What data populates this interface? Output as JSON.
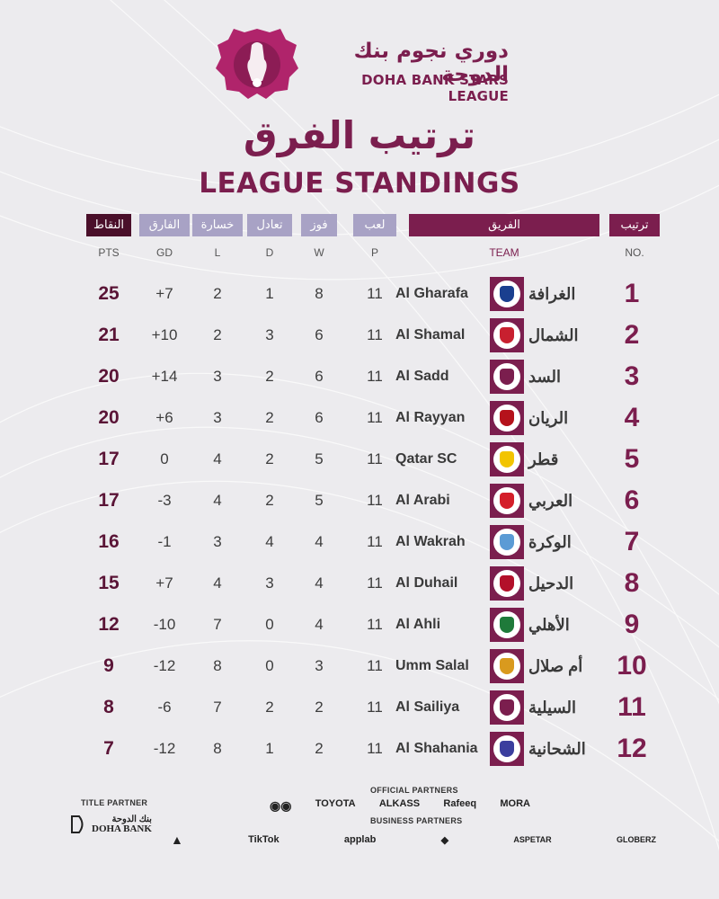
{
  "league": {
    "name_ar": "دوري نجوم بنك الدوحة",
    "name_en": "DOHA BANK STARS LEAGUE"
  },
  "title": {
    "ar": "ترتيب الفرق",
    "en": "LEAGUE STANDINGS"
  },
  "headers": {
    "rank_ar": "ترتيب",
    "team_ar": "الفريق",
    "played_ar": "لعب",
    "won_ar": "فوز",
    "drawn_ar": "تعادل",
    "lost_ar": "خسارة",
    "gd_ar": "الفارق",
    "pts_ar": "النقاط",
    "rank_en": "NO.",
    "team_en": "TEAM",
    "played_en": "P",
    "won_en": "W",
    "drawn_en": "D",
    "lost_en": "L",
    "gd_en": "GD",
    "pts_en": "PTS"
  },
  "colors": {
    "maroon": "#7b1e4e",
    "lavender": "#a8a2c5",
    "dark": "#4a0f2a"
  },
  "teams": [
    {
      "no": "1",
      "name_ar": "الغرافة",
      "name": "Al Gharafa",
      "p": "11",
      "w": "8",
      "d": "1",
      "l": "2",
      "gd": "+7",
      "pts": "25",
      "crest_color": "#1a3f8f"
    },
    {
      "no": "2",
      "name_ar": "الشمال",
      "name": "Al Shamal",
      "p": "11",
      "w": "6",
      "d": "3",
      "l": "2",
      "gd": "+10",
      "pts": "21",
      "crest_color": "#c8202f"
    },
    {
      "no": "3",
      "name_ar": "السد",
      "name": "Al Sadd",
      "p": "11",
      "w": "6",
      "d": "2",
      "l": "3",
      "gd": "+14",
      "pts": "20",
      "crest_color": "#7b1e4e"
    },
    {
      "no": "4",
      "name_ar": "الريان",
      "name": "Al Rayyan",
      "p": "11",
      "w": "6",
      "d": "2",
      "l": "3",
      "gd": "+6",
      "pts": "20",
      "crest_color": "#b5121b"
    },
    {
      "no": "5",
      "name_ar": "قطر",
      "name": "Qatar SC",
      "p": "11",
      "w": "5",
      "d": "2",
      "l": "4",
      "gd": "0",
      "pts": "17",
      "crest_color": "#f2c400"
    },
    {
      "no": "6",
      "name_ar": "العربي",
      "name": "Al Arabi",
      "p": "11",
      "w": "5",
      "d": "2",
      "l": "4",
      "gd": "-3",
      "pts": "17",
      "crest_color": "#d41f2a"
    },
    {
      "no": "7",
      "name_ar": "الوكرة",
      "name": "Al Wakrah",
      "p": "11",
      "w": "4",
      "d": "4",
      "l": "3",
      "gd": "-1",
      "pts": "16",
      "crest_color": "#5b9bd5"
    },
    {
      "no": "8",
      "name_ar": "الدحيل",
      "name": "Al Duhail",
      "p": "11",
      "w": "4",
      "d": "3",
      "l": "4",
      "gd": "+7",
      "pts": "15",
      "crest_color": "#b3102a"
    },
    {
      "no": "9",
      "name_ar": "الأهلي",
      "name": "Al Ahli",
      "p": "11",
      "w": "4",
      "d": "0",
      "l": "7",
      "gd": "-10",
      "pts": "12",
      "crest_color": "#1f7a3a"
    },
    {
      "no": "10",
      "name_ar": "أم صلال",
      "name": "Umm Salal",
      "p": "11",
      "w": "3",
      "d": "0",
      "l": "8",
      "gd": "-12",
      "pts": "9",
      "crest_color": "#d99a1e"
    },
    {
      "no": "11",
      "name_ar": "السيلية",
      "name": "Al Sailiya",
      "p": "11",
      "w": "2",
      "d": "2",
      "l": "7",
      "gd": "-6",
      "pts": "8",
      "crest_color": "#7b1e4e"
    },
    {
      "no": "12",
      "name_ar": "الشحانية",
      "name": "Al Shahania",
      "p": "11",
      "w": "2",
      "d": "1",
      "l": "8",
      "gd": "-12",
      "pts": "7",
      "crest_color": "#3b3e9e"
    }
  ],
  "footer": {
    "title_partner_label": "TITLE PARTNER",
    "official_partners_label": "OFFICIAL PARTNERS",
    "business_partners_label": "BUSINESS PARTNERS",
    "title_partner": "DOHA BANK",
    "title_partner_ar": "بنك الدوحة",
    "official_partners": [
      "TOYOTA",
      "ALKASS",
      "Rafeeq",
      "MORA"
    ],
    "business_partners": [
      "adidas",
      "TikTok",
      "applab",
      "ASPETAR",
      "GLOBERZ"
    ]
  }
}
